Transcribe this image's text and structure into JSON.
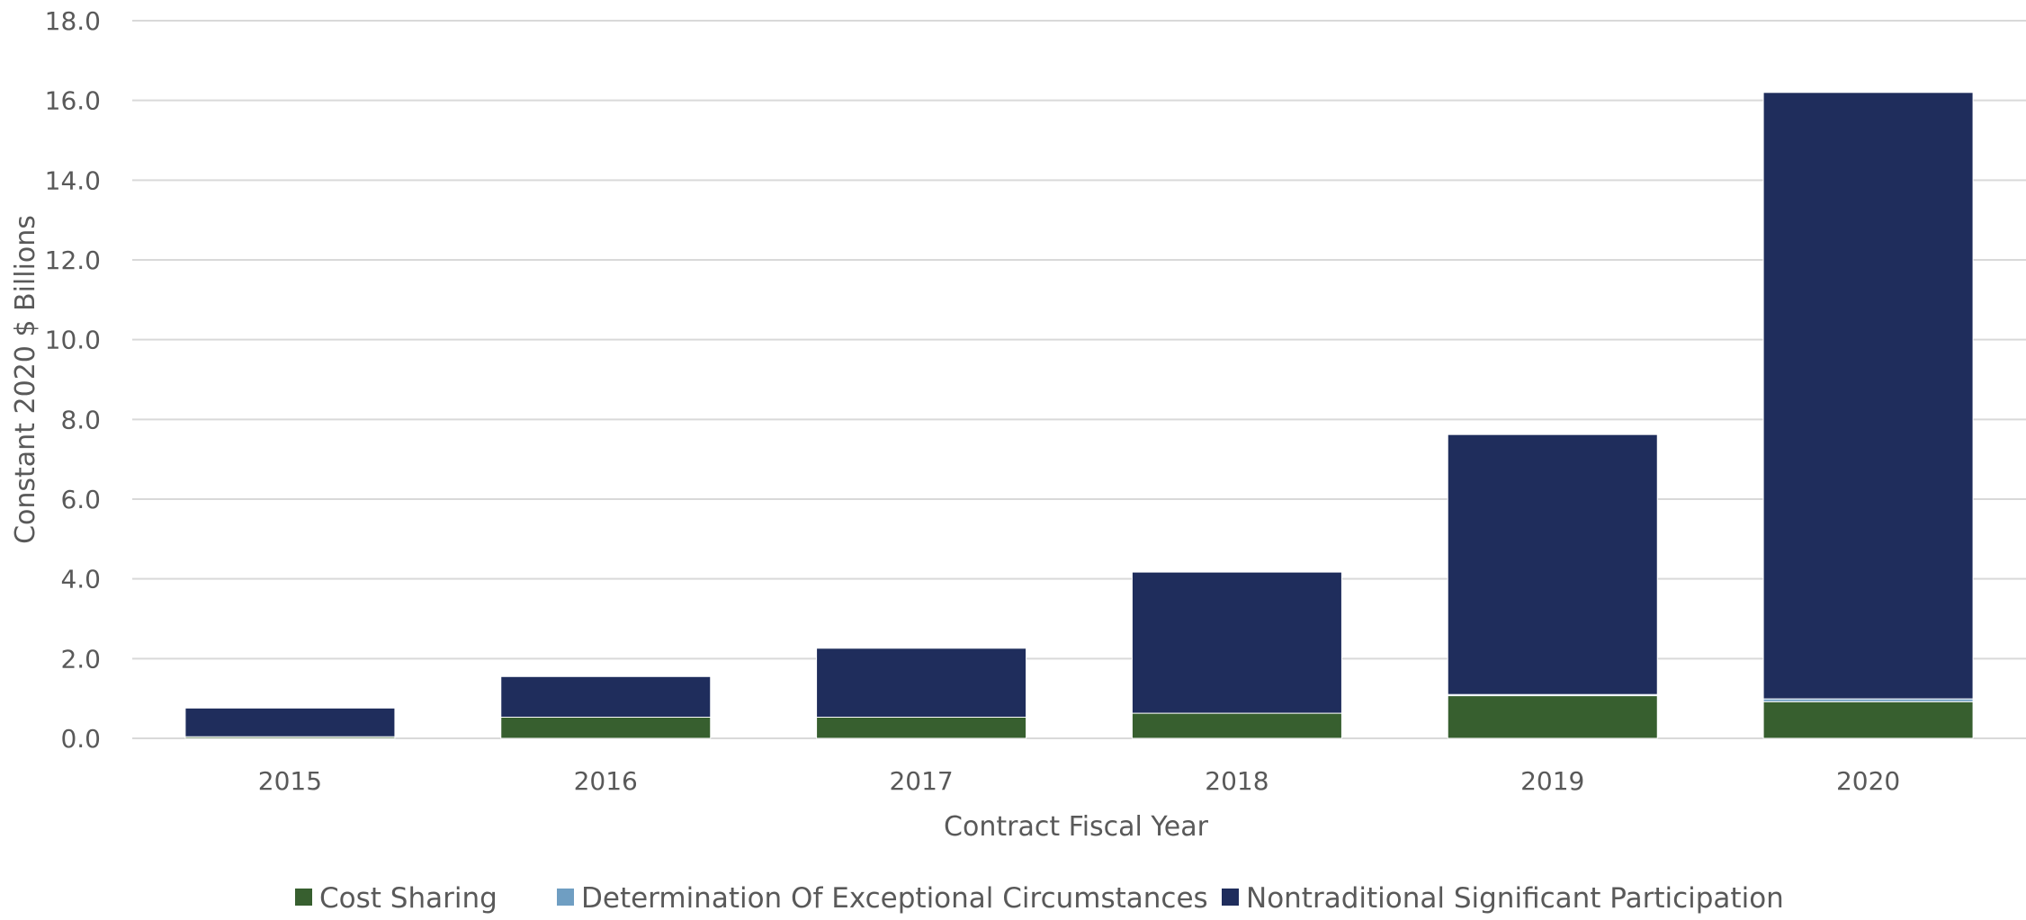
{
  "chart_data": {
    "type": "bar",
    "stacked": true,
    "categories": [
      "2015",
      "2016",
      "2017",
      "2018",
      "2019",
      "2020"
    ],
    "series": [
      {
        "name": "Cost Sharing",
        "color": "#375F2F",
        "values": [
          0.04,
          0.53,
          0.53,
          0.63,
          1.07,
          0.92
        ]
      },
      {
        "name": "Determination Of Exceptional Circumstances",
        "color": "#6F9EC2",
        "values": [
          0.0,
          0.0,
          0.0,
          0.0,
          0.03,
          0.07
        ]
      },
      {
        "name": "Nontraditional Significant Participation",
        "color": "#1F2D5C",
        "values": [
          0.72,
          1.02,
          1.73,
          3.54,
          6.52,
          15.21
        ]
      }
    ],
    "xlabel": "Contract Fiscal Year",
    "ylabel": "Constant 2020 $ Billions",
    "ylim": [
      0,
      18
    ],
    "yticks": [
      "0.0",
      "2.0",
      "4.0",
      "6.0",
      "8.0",
      "10.0",
      "12.0",
      "14.0",
      "16.0",
      "18.0"
    ],
    "grid": true,
    "legend_position": "bottom"
  }
}
